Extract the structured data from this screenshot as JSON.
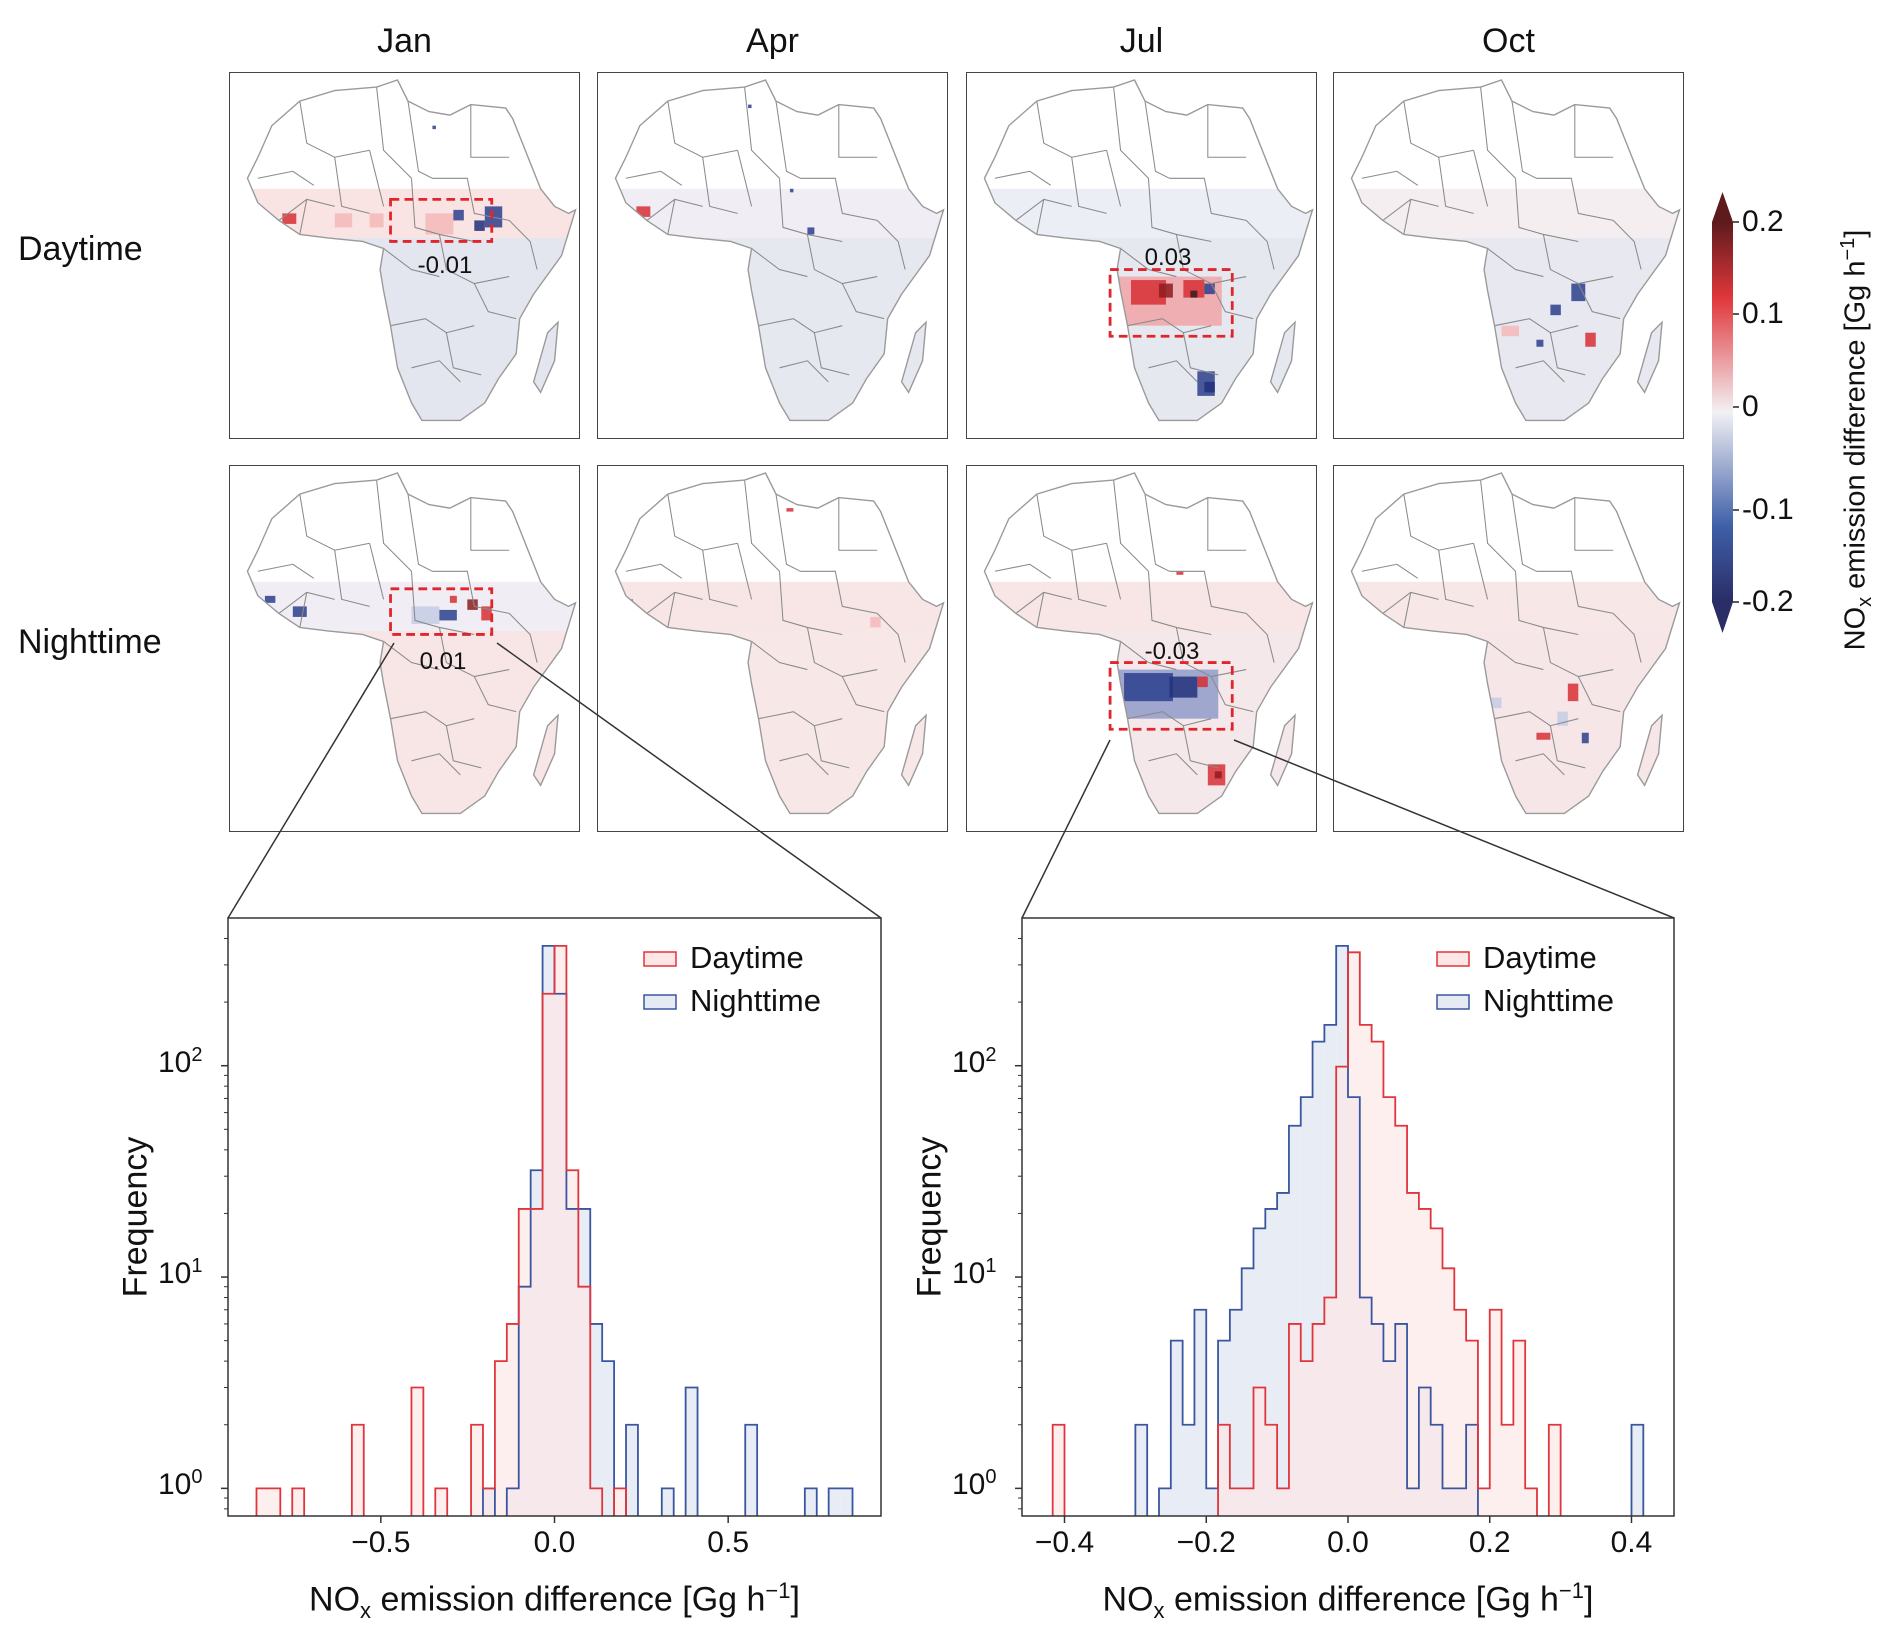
{
  "columns": [
    "Jan",
    "Apr",
    "Jul",
    "Oct"
  ],
  "rows": [
    "Daytime",
    "Nighttime"
  ],
  "box_labels": {
    "jan_day": "-0.01",
    "jul_day": "0.03",
    "jan_night": "0.01",
    "jul_night": "-0.03"
  },
  "colorbar": {
    "title_main": "NO",
    "title_sub": "x",
    "title_rest": " emission difference [Gg h",
    "title_sup": "−1",
    "title_end": "]",
    "ticks": [
      "0.2",
      "0.1",
      "0",
      "-0.1",
      "-0.2"
    ],
    "range": [
      -0.2,
      0.2
    ],
    "colors": {
      "min": "#2a2d66",
      "neg": "#3f5fa8",
      "zero": "#f2f1f4",
      "pos": "#e0373b",
      "max": "#5e1a1d"
    }
  },
  "colors": {
    "daytime": "#e0353c",
    "nighttime": "#3a56a0",
    "daytime_fill": "#fde6e6",
    "nighttime_fill": "#e6eaf3"
  },
  "chart_data": [
    {
      "type": "histogram",
      "panel": "Jan",
      "xlabel_main": "NO",
      "xlabel_sub": "x",
      "xlabel_rest": " emission difference [Gg h",
      "xlabel_sup": "−1",
      "xlabel_end": "]",
      "ylabel": "Frequency",
      "yscale": "log",
      "xlim": [
        -0.94,
        0.94
      ],
      "ylim": [
        0.74,
        500
      ],
      "xticks": [
        "−0.5",
        "0.0",
        "0.5"
      ],
      "xtick_values": [
        -0.5,
        0.0,
        0.5
      ],
      "yticks": [
        {
          "base": "10",
          "exp": "0"
        },
        {
          "base": "10",
          "exp": "1"
        },
        {
          "base": "10",
          "exp": "2"
        }
      ],
      "ytick_values": [
        1,
        10,
        100
      ],
      "bin_range": [
        -0.858,
        0.858
      ],
      "legend_position": "top-right",
      "series": [
        {
          "name": "Daytime",
          "counts": [
            1,
            1,
            0,
            1,
            0,
            0,
            0,
            0,
            2,
            0,
            0,
            0,
            0,
            3,
            0,
            1,
            0,
            0,
            2,
            1,
            4,
            6,
            21,
            21,
            219,
            369,
            32,
            9,
            1,
            0,
            1,
            0,
            0,
            0,
            0,
            0,
            0,
            0,
            0,
            0,
            0,
            0,
            0,
            0,
            0,
            0,
            0,
            0,
            0,
            0
          ]
        },
        {
          "name": "Nighttime",
          "counts": [
            0,
            0,
            0,
            0,
            0,
            0,
            0,
            0,
            0,
            0,
            0,
            0,
            0,
            0,
            0,
            0,
            0,
            0,
            0,
            1,
            0,
            1,
            9,
            32,
            369,
            219,
            21,
            21,
            6,
            4,
            0,
            2,
            0,
            0,
            1,
            0,
            3,
            0,
            0,
            0,
            0,
            2,
            0,
            0,
            0,
            0,
            1,
            0,
            1,
            1
          ]
        }
      ]
    },
    {
      "type": "histogram",
      "panel": "Jul",
      "xlabel_main": "NO",
      "xlabel_sub": "x",
      "xlabel_rest": " emission difference [Gg h",
      "xlabel_sup": "−1",
      "xlabel_end": "]",
      "ylabel": "Frequency",
      "yscale": "log",
      "xlim": [
        -0.46,
        0.46
      ],
      "ylim": [
        0.74,
        500
      ],
      "xticks": [
        "−0.4",
        "−0.2",
        "0.0",
        "0.2",
        "0.4"
      ],
      "xtick_values": [
        -0.4,
        -0.2,
        0.0,
        0.2,
        0.4
      ],
      "yticks": [
        {
          "base": "10",
          "exp": "0"
        },
        {
          "base": "10",
          "exp": "1"
        },
        {
          "base": "10",
          "exp": "2"
        }
      ],
      "ytick_values": [
        1,
        10,
        100
      ],
      "bin_range": [
        -0.4167,
        0.4167
      ],
      "legend_position": "top-right",
      "series": [
        {
          "name": "Daytime",
          "counts": [
            2,
            0,
            0,
            0,
            0,
            0,
            0,
            0,
            0,
            0,
            0,
            0,
            0,
            0,
            2,
            1,
            1,
            3,
            2,
            1,
            6,
            4,
            6,
            8,
            99,
            344,
            156,
            130,
            71,
            52,
            25,
            21,
            17,
            11,
            7,
            5,
            1,
            7,
            2,
            5,
            1,
            0,
            2,
            0,
            0,
            0,
            0,
            0,
            0,
            0
          ]
        },
        {
          "name": "Nighttime",
          "counts": [
            0,
            0,
            0,
            0,
            0,
            0,
            0,
            2,
            0,
            1,
            5,
            2,
            7,
            1,
            5,
            7,
            11,
            17,
            21,
            25,
            52,
            71,
            130,
            156,
            369,
            71,
            8,
            6,
            4,
            6,
            1,
            3,
            2,
            1,
            1,
            2,
            0,
            0,
            0,
            0,
            0,
            0,
            0,
            0,
            0,
            0,
            0,
            0,
            0,
            2
          ]
        }
      ]
    }
  ]
}
